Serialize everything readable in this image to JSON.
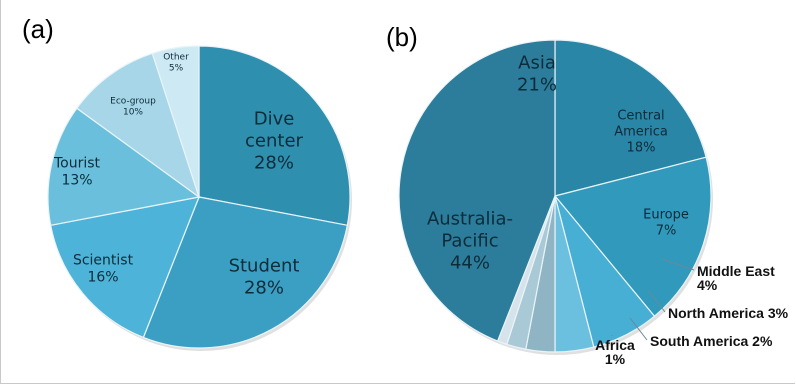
{
  "chart_data": [
    {
      "type": "pie",
      "panel_label": "(a)",
      "start_angle_deg": 0,
      "direction": "clockwise",
      "slices": [
        {
          "name": "Dive center",
          "lines": [
            "Dive",
            "center",
            "28%"
          ],
          "value": 28,
          "color": "#2f8fae"
        },
        {
          "name": "Student",
          "lines": [
            "Student",
            "28%"
          ],
          "value": 28,
          "color": "#3a9fc3"
        },
        {
          "name": "Scientist",
          "lines": [
            "Scientist",
            "16%"
          ],
          "value": 16,
          "color": "#4db3d8"
        },
        {
          "name": "Tourist",
          "lines": [
            "Tourist",
            "13%"
          ],
          "value": 13,
          "color": "#6ac0dc"
        },
        {
          "name": "Eco-group",
          "lines": [
            "Eco-group",
            "10%"
          ],
          "value": 10,
          "color": "#a6d6e8"
        },
        {
          "name": "Other",
          "lines": [
            "Other",
            "5%"
          ],
          "value": 5,
          "color": "#cde9f3"
        }
      ]
    },
    {
      "type": "pie",
      "panel_label": "(b)",
      "start_angle_deg": 0,
      "direction": "clockwise",
      "slices": [
        {
          "name": "Asia",
          "lines": [
            "Asia",
            "21%"
          ],
          "value": 21,
          "color": "#2a86a6",
          "label_outside": false
        },
        {
          "name": "Central America",
          "lines": [
            "Central",
            "America",
            "18%"
          ],
          "value": 18,
          "color": "#3199bb",
          "label_outside": false
        },
        {
          "name": "Europe",
          "lines": [
            "Europe",
            "7%"
          ],
          "value": 7,
          "color": "#47aed4",
          "label_outside": false
        },
        {
          "name": "Middle East",
          "lines": [
            "Middle East",
            "4%"
          ],
          "value": 4,
          "color": "#6cc0df",
          "label_outside": true
        },
        {
          "name": "North America",
          "lines": [
            "North America 3%"
          ],
          "value": 3,
          "color": "#8fb4c4",
          "label_outside": true
        },
        {
          "name": "South America",
          "lines": [
            "South America 2%"
          ],
          "value": 2,
          "color": "#a9c9d6",
          "label_outside": true
        },
        {
          "name": "Africa",
          "lines": [
            "Africa",
            "1%"
          ],
          "value": 1,
          "color": "#d6e3ea",
          "label_outside": true
        },
        {
          "name": "Australia-Pacific",
          "lines": [
            "Australia-",
            "Pacific",
            "44%"
          ],
          "value": 44,
          "color": "#2b7d9b",
          "label_outside": false
        }
      ]
    }
  ]
}
